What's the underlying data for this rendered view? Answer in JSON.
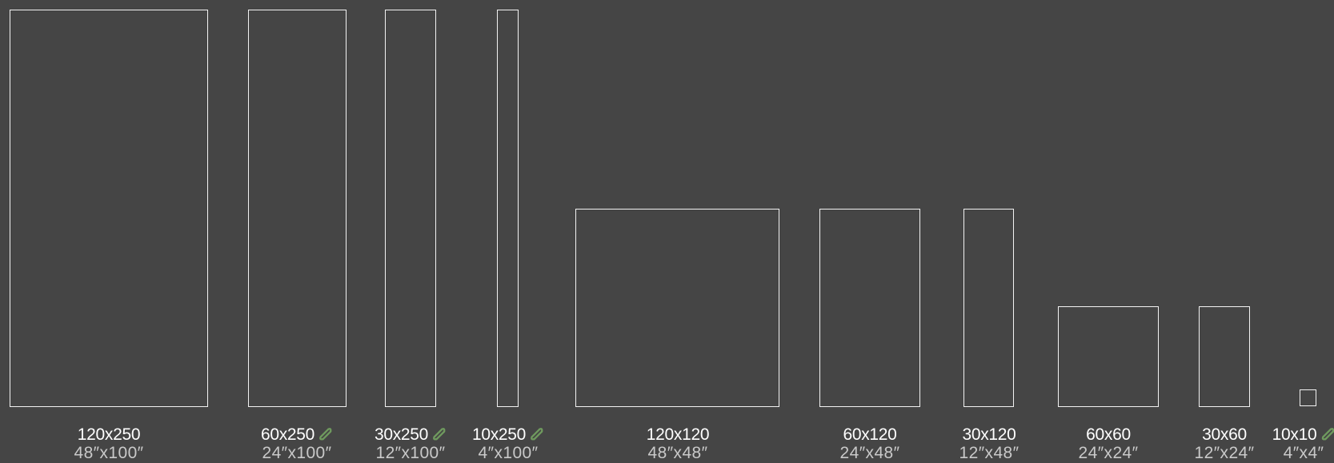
{
  "tiles": [
    {
      "metric": "120x250",
      "imperial": "48″x100″",
      "eco": false
    },
    {
      "metric": "60x250",
      "imperial": "24″x100″",
      "eco": true
    },
    {
      "metric": "30x250",
      "imperial": "12″x100″",
      "eco": true
    },
    {
      "metric": "10x250",
      "imperial": "4″x100″",
      "eco": true
    },
    {
      "metric": "120x120",
      "imperial": "48″x48″",
      "eco": false
    },
    {
      "metric": "60x120",
      "imperial": "24″x48″",
      "eco": false
    },
    {
      "metric": "30x120",
      "imperial": "12″x48″",
      "eco": false
    },
    {
      "metric": "60x60",
      "imperial": "24″x24″",
      "eco": false
    },
    {
      "metric": "30x60",
      "imperial": "12″x24″",
      "eco": false
    },
    {
      "metric": "10x10",
      "imperial": "4″x4″",
      "eco": true
    }
  ],
  "colors": {
    "background": "#454545",
    "outline": "#f2f2f2",
    "eco_icon": "#6f9a5e"
  },
  "icons": {
    "eco": "leaf-eco-icon"
  }
}
